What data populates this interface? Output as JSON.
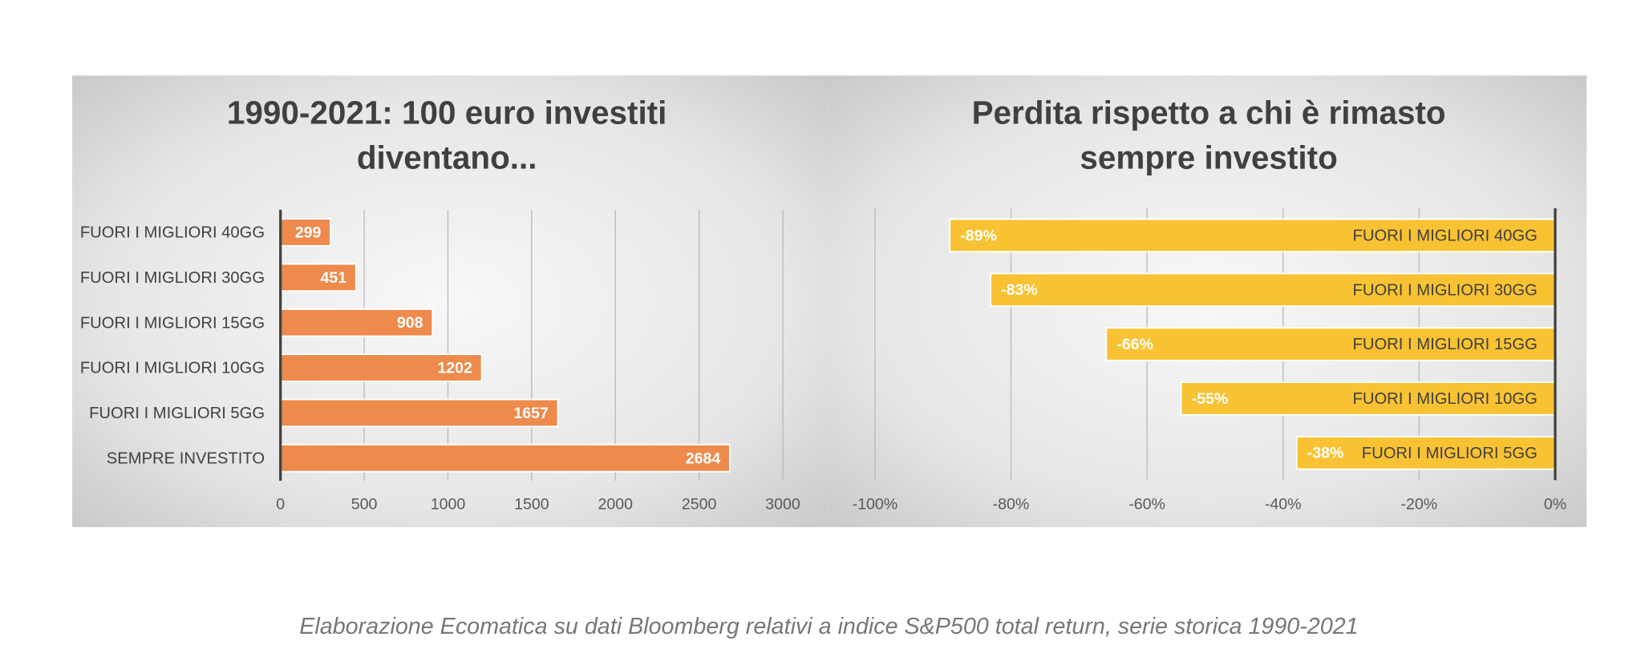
{
  "chart_data": [
    {
      "type": "bar",
      "title": [
        "1990-2021: 100 euro investiti",
        "diventano..."
      ],
      "categories": [
        "FUORI I MIGLIORI 40GG",
        "FUORI I MIGLIORI 30GG",
        "FUORI I MIGLIORI 15GG",
        "FUORI I MIGLIORI 10GG",
        "FUORI I MIGLIORI 5GG",
        "SEMPRE INVESTITO"
      ],
      "values": [
        299,
        451,
        908,
        1202,
        1657,
        2684
      ],
      "color": "#ed8a4c",
      "xlim": [
        0,
        3000
      ],
      "xticks": [
        0,
        500,
        1000,
        1500,
        2000,
        2500,
        3000
      ],
      "grid": true
    },
    {
      "type": "bar",
      "title": [
        "Perdita rispetto a chi è rimasto",
        "sempre investito"
      ],
      "categories": [
        "FUORI I MIGLIORI 40GG",
        "FUORI I MIGLIORI 30GG",
        "FUORI I MIGLIORI 15GG",
        "FUORI I MIGLIORI 10GG",
        "FUORI I MIGLIORI 5GG"
      ],
      "values": [
        -89,
        -83,
        -66,
        -55,
        -38
      ],
      "value_labels": [
        "-89%",
        "-83%",
        "-66%",
        "-55%",
        "-38%"
      ],
      "color": "#f9c232",
      "xlim": [
        -100,
        0
      ],
      "xticks": [
        {
          "value": -100,
          "label": "-100%"
        },
        {
          "value": -80,
          "label": "-80%"
        },
        {
          "value": -60,
          "label": "-60%"
        },
        {
          "value": -40,
          "label": "-40%"
        },
        {
          "value": -20,
          "label": "-20%"
        },
        {
          "value": 0,
          "label": "0%"
        }
      ],
      "grid": true
    }
  ],
  "caption": "Elaborazione Ecomatica su dati Bloomberg relativi a indice S&P500 total return, serie storica 1990-2021"
}
